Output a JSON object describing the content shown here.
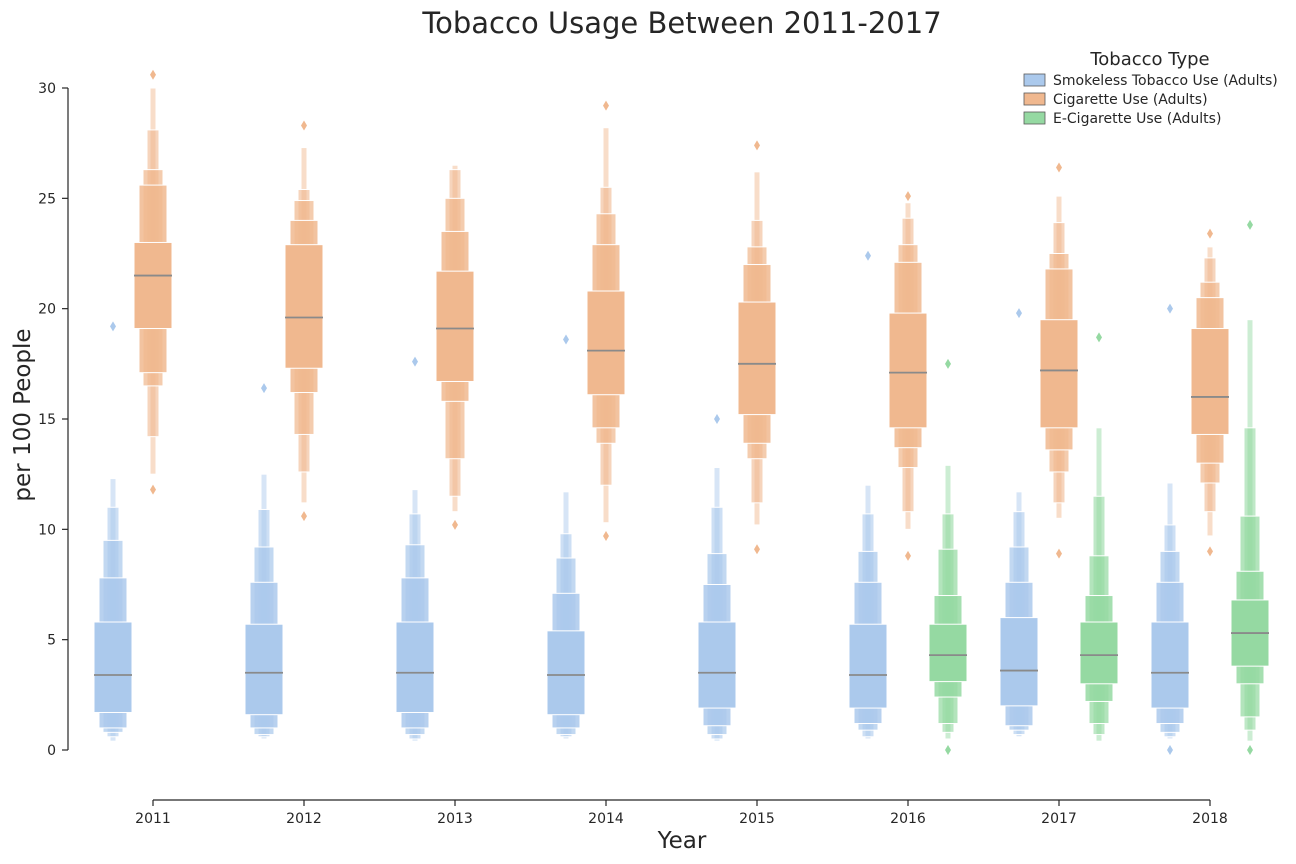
{
  "chart_data": {
    "type": "boxen",
    "title": "Tobacco Usage Between 2011-2017",
    "xlabel": "Year",
    "ylabel": "per 100 People",
    "ylim": [
      0,
      30
    ],
    "yticks": [
      0,
      5,
      10,
      15,
      20,
      25,
      30
    ],
    "categories": [
      "2011",
      "2012",
      "2013",
      "2014",
      "2015",
      "2016",
      "2017",
      "2018"
    ],
    "legend": {
      "title": "Tobacco Type",
      "position": "top-right",
      "entries": [
        {
          "name": "Smokeless Tobacco Use (Adults)",
          "color": "#abc9ec"
        },
        {
          "name": "Cigarette Use (Adults)",
          "color": "#f0b88f"
        },
        {
          "name": "E-Cigarette Use (Adults)",
          "color": "#95d9a2"
        }
      ]
    },
    "median_color": "#8a8a8a",
    "series": [
      {
        "name": "Smokeless Tobacco Use (Adults)",
        "color": "#abc9ec",
        "values": [
          {
            "category": "2011",
            "median": 3.4,
            "levels": [
              [
                1.7,
                5.8
              ],
              [
                1.0,
                7.8
              ],
              [
                0.8,
                9.5
              ],
              [
                0.6,
                11.0
              ],
              [
                0.4,
                12.3
              ]
            ],
            "outliers": [
              19.2
            ]
          },
          {
            "category": "2012",
            "median": 3.5,
            "levels": [
              [
                1.6,
                5.7
              ],
              [
                1.0,
                7.6
              ],
              [
                0.7,
                9.2
              ],
              [
                0.6,
                10.9
              ],
              [
                0.5,
                12.5
              ]
            ],
            "outliers": [
              16.4
            ]
          },
          {
            "category": "2013",
            "median": 3.5,
            "levels": [
              [
                1.7,
                5.8
              ],
              [
                1.0,
                7.8
              ],
              [
                0.7,
                9.3
              ],
              [
                0.5,
                10.7
              ],
              [
                0.4,
                11.8
              ]
            ],
            "outliers": [
              17.6
            ]
          },
          {
            "category": "2014",
            "median": 3.4,
            "levels": [
              [
                1.6,
                5.4
              ],
              [
                1.0,
                7.1
              ],
              [
                0.7,
                8.7
              ],
              [
                0.6,
                9.8
              ],
              [
                0.5,
                11.7
              ]
            ],
            "outliers": [
              18.6
            ]
          },
          {
            "category": "2015",
            "median": 3.5,
            "levels": [
              [
                1.9,
                5.8
              ],
              [
                1.1,
                7.5
              ],
              [
                0.7,
                8.9
              ],
              [
                0.5,
                11.0
              ],
              [
                0.4,
                12.8
              ]
            ],
            "outliers": [
              15.0
            ]
          },
          {
            "category": "2016",
            "median": 3.4,
            "levels": [
              [
                1.9,
                5.7
              ],
              [
                1.2,
                7.6
              ],
              [
                0.9,
                9.0
              ],
              [
                0.6,
                10.7
              ],
              [
                0.5,
                12.0
              ]
            ],
            "outliers": [
              22.4
            ]
          },
          {
            "category": "2017",
            "median": 3.6,
            "levels": [
              [
                2.0,
                6.0
              ],
              [
                1.1,
                7.6
              ],
              [
                0.9,
                9.2
              ],
              [
                0.7,
                10.8
              ],
              [
                0.6,
                11.7
              ]
            ],
            "outliers": [
              19.8
            ]
          },
          {
            "category": "2018",
            "median": 3.5,
            "levels": [
              [
                1.9,
                5.8
              ],
              [
                1.2,
                7.6
              ],
              [
                0.8,
                9.0
              ],
              [
                0.6,
                10.2
              ],
              [
                0.5,
                12.1
              ]
            ],
            "outliers": [
              20.0,
              0.0
            ]
          }
        ]
      },
      {
        "name": "Cigarette Use (Adults)",
        "color": "#f0b88f",
        "values": [
          {
            "category": "2011",
            "median": 21.5,
            "levels": [
              [
                19.1,
                23.0
              ],
              [
                17.1,
                25.6
              ],
              [
                16.5,
                26.3
              ],
              [
                14.2,
                28.1
              ],
              [
                12.5,
                30.0
              ]
            ],
            "outliers": [
              30.6,
              11.8
            ]
          },
          {
            "category": "2012",
            "median": 19.6,
            "levels": [
              [
                17.3,
                22.9
              ],
              [
                16.2,
                24.0
              ],
              [
                14.3,
                24.9
              ],
              [
                12.6,
                25.4
              ],
              [
                11.2,
                27.3
              ]
            ],
            "outliers": [
              28.3,
              10.6
            ]
          },
          {
            "category": "2013",
            "median": 19.1,
            "levels": [
              [
                16.7,
                21.7
              ],
              [
                15.8,
                23.5
              ],
              [
                13.2,
                25.0
              ],
              [
                11.5,
                26.3
              ],
              [
                10.8,
                26.5
              ]
            ],
            "outliers": [
              10.2
            ]
          },
          {
            "category": "2014",
            "median": 18.1,
            "levels": [
              [
                16.1,
                20.8
              ],
              [
                14.6,
                22.9
              ],
              [
                13.9,
                24.3
              ],
              [
                12.0,
                25.5
              ],
              [
                10.3,
                28.2
              ]
            ],
            "outliers": [
              29.2,
              9.7
            ]
          },
          {
            "category": "2015",
            "median": 17.5,
            "levels": [
              [
                15.2,
                20.3
              ],
              [
                13.9,
                22.0
              ],
              [
                13.2,
                22.8
              ],
              [
                11.2,
                24.0
              ],
              [
                10.2,
                26.2
              ]
            ],
            "outliers": [
              27.4,
              9.1
            ]
          },
          {
            "category": "2016",
            "median": 17.1,
            "levels": [
              [
                14.6,
                19.8
              ],
              [
                13.7,
                22.1
              ],
              [
                12.8,
                22.9
              ],
              [
                10.8,
                24.1
              ],
              [
                10.0,
                24.8
              ]
            ],
            "outliers": [
              25.1,
              8.8
            ]
          },
          {
            "category": "2017",
            "median": 17.2,
            "levels": [
              [
                14.6,
                19.5
              ],
              [
                13.6,
                21.8
              ],
              [
                12.6,
                22.5
              ],
              [
                11.2,
                23.9
              ],
              [
                10.5,
                25.1
              ]
            ],
            "outliers": [
              26.4,
              8.9
            ]
          },
          {
            "category": "2018",
            "median": 16.0,
            "levels": [
              [
                14.3,
                19.1
              ],
              [
                13.0,
                20.5
              ],
              [
                12.1,
                21.2
              ],
              [
                10.8,
                22.3
              ],
              [
                9.7,
                22.8
              ]
            ],
            "outliers": [
              23.4,
              9.0
            ]
          }
        ]
      },
      {
        "name": "E-Cigarette Use (Adults)",
        "color": "#95d9a2",
        "values": [
          {
            "category": "2016",
            "median": 4.3,
            "levels": [
              [
                3.1,
                5.7
              ],
              [
                2.4,
                7.0
              ],
              [
                1.2,
                9.1
              ],
              [
                0.8,
                10.7
              ],
              [
                0.5,
                12.9
              ]
            ],
            "outliers": [
              17.5,
              0.0
            ]
          },
          {
            "category": "2017",
            "median": 4.3,
            "levels": [
              [
                3.0,
                5.8
              ],
              [
                2.2,
                7.0
              ],
              [
                1.2,
                8.8
              ],
              [
                0.7,
                11.5
              ],
              [
                0.4,
                14.6
              ]
            ],
            "outliers": [
              18.7
            ]
          },
          {
            "category": "2018",
            "median": 5.3,
            "levels": [
              [
                3.8,
                6.8
              ],
              [
                3.0,
                8.1
              ],
              [
                1.5,
                10.6
              ],
              [
                0.9,
                14.6
              ],
              [
                0.4,
                19.5
              ]
            ],
            "outliers": [
              23.8,
              0.0
            ]
          }
        ]
      }
    ]
  }
}
